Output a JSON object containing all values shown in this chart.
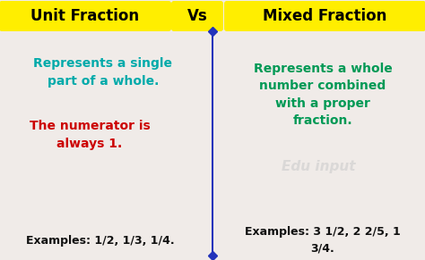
{
  "bg_color": "#f0ebe8",
  "title_left": "Unit Fraction",
  "title_vs": "Vs",
  "title_right": "Mixed Fraction",
  "title_bg": "#ffee00",
  "title_text_color": "#000000",
  "divider_color": "#2233bb",
  "left_text1": "Represents a single\npart of a whole.",
  "left_text1_color": "#00aaaa",
  "left_text2": "The numerator is\nalways 1.",
  "left_text2_color": "#cc0000",
  "left_text3": "Examples: 1/2, 1/3, 1/4.",
  "left_text3_color": "#111111",
  "right_text1": "Represents a whole\nnumber combined\nwith a proper\nfraction.",
  "right_text1_color": "#009955",
  "right_text3": "Examples: 3 1/2, 2 2/5, 1\n3/4.",
  "right_text3_color": "#111111",
  "watermark": "Edu input",
  "watermark_color": "#cccccc"
}
